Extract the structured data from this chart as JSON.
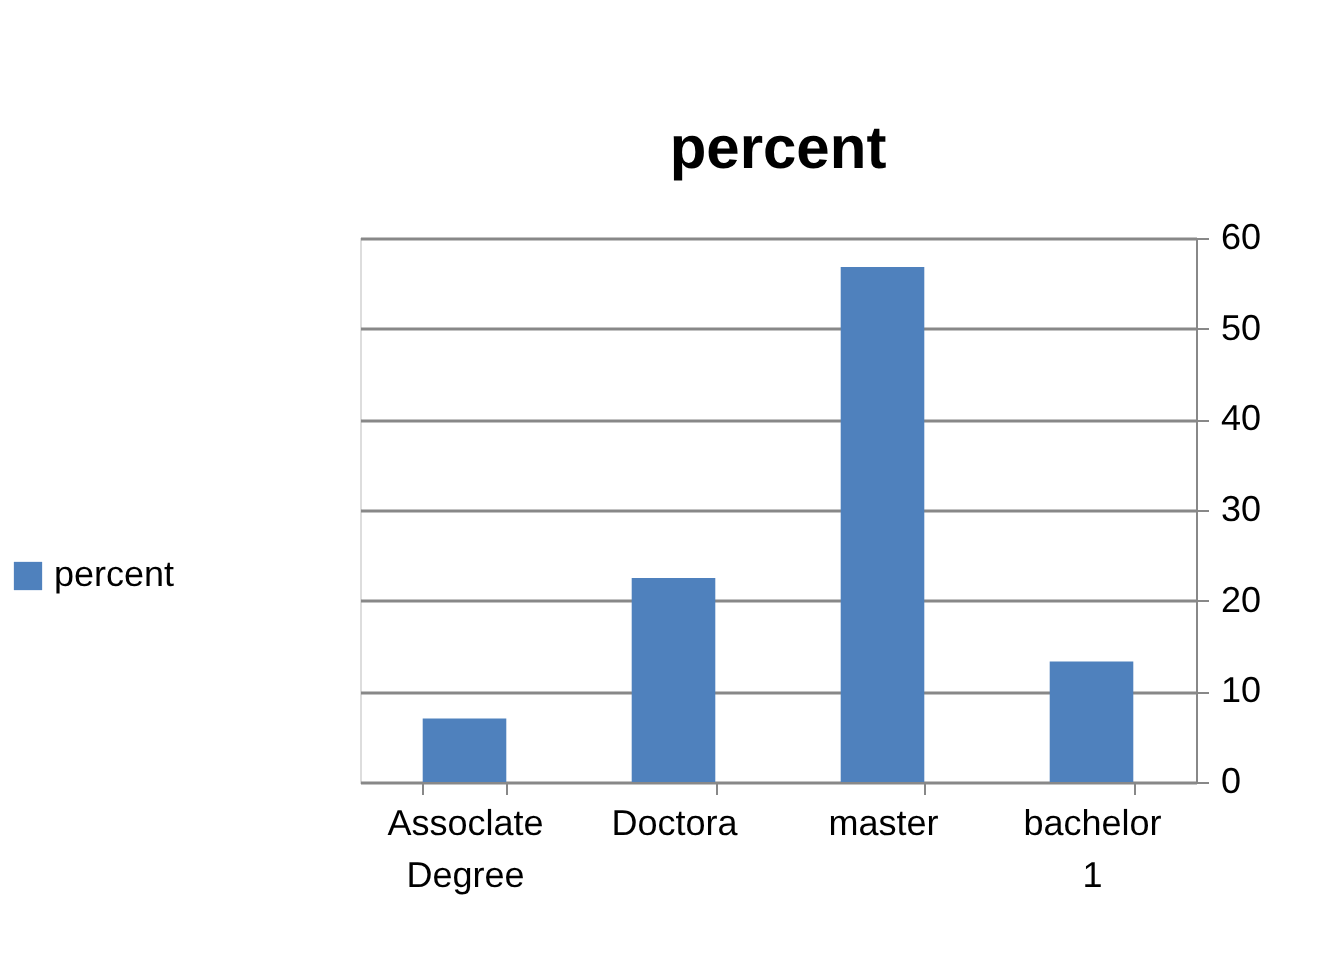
{
  "chart_data": {
    "type": "bar",
    "title": "percent",
    "categories": [
      "Assoclate Degree",
      "Doctora",
      "master",
      "bachelor 1"
    ],
    "series": [
      {
        "name": "percent",
        "color": "#4f81bd",
        "values": [
          7.0,
          22.5,
          56.8,
          13.3
        ]
      }
    ],
    "ylim": [
      0,
      60
    ],
    "yticks": [
      0,
      10,
      20,
      30,
      40,
      50,
      60
    ],
    "grid": "y",
    "legend": "left"
  }
}
